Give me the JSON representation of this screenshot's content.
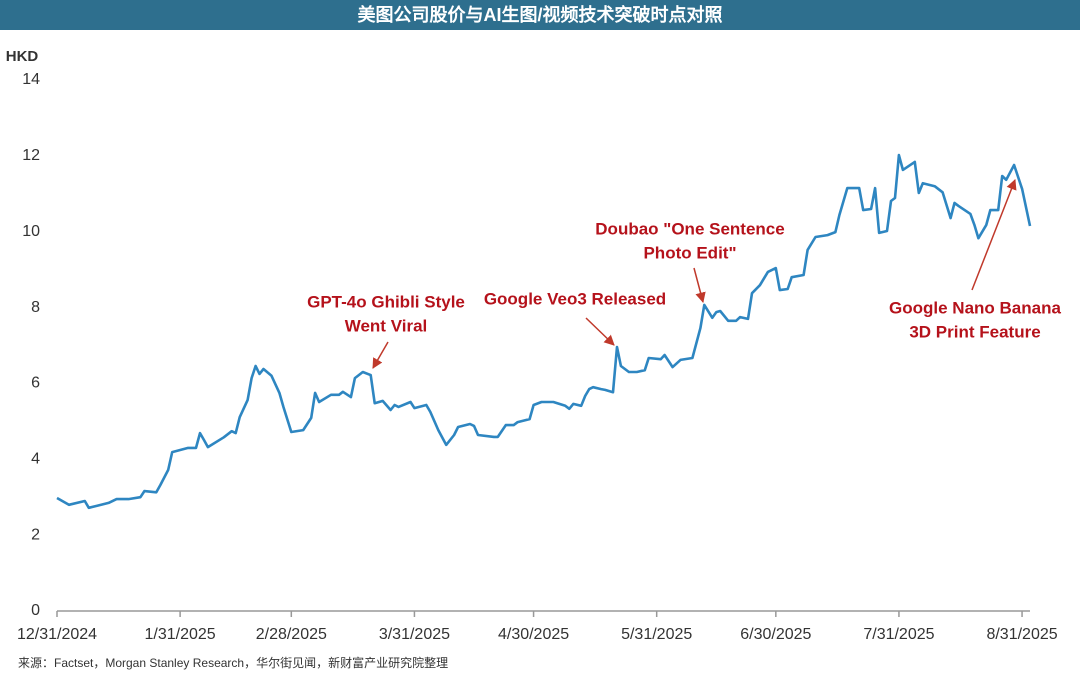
{
  "chart_data": {
    "type": "line",
    "title": "美图公司股价与AI生图/视频技术突破时点对照",
    "y_label": "HKD",
    "source": "来源：Factset，Morgan Stanley Research，华尔街见闻，新财富产业研究院整理",
    "ylim": [
      0,
      14
    ],
    "yticks": [
      0,
      2,
      4,
      6,
      8,
      10,
      12,
      14
    ],
    "xlim": [
      "12/31/2024",
      "9/2/2025"
    ],
    "xticks": [
      "12/31/2024",
      "1/31/2025",
      "2/28/2025",
      "3/31/2025",
      "4/30/2025",
      "5/31/2025",
      "6/30/2025",
      "7/31/2025",
      "8/31/2025"
    ],
    "x": [
      "12/31/2024",
      "1/3/2025",
      "1/7/2025",
      "1/8/2025",
      "1/10/2025",
      "1/13/2025",
      "1/15/2025",
      "1/18/2025",
      "1/21/2025",
      "1/22/2025",
      "1/25/2025",
      "1/26/2025",
      "1/28/2025",
      "1/29/2025",
      "2/2/2025",
      "2/4/2025",
      "2/5/2025",
      "2/6/2025",
      "2/7/2025",
      "2/11/2025",
      "2/13/2025",
      "2/14/2025",
      "2/15/2025",
      "2/17/2025",
      "2/18/2025",
      "2/19/2025",
      "2/20/2025",
      "2/21/2025",
      "2/23/2025",
      "2/25/2025",
      "2/26/2025",
      "2/28/2025",
      "3/3/2025",
      "3/5/2025",
      "3/6/2025",
      "3/7/2025",
      "3/10/2025",
      "3/12/2025",
      "3/13/2025",
      "3/15/2025",
      "3/16/2025",
      "3/18/2025",
      "3/20/2025",
      "3/21/2025",
      "3/23/2025",
      "3/25/2025",
      "3/26/2025",
      "3/27/2025",
      "3/30/2025",
      "3/31/2025",
      "4/3/2025",
      "4/4/2025",
      "4/6/2025",
      "4/8/2025",
      "4/10/2025",
      "4/11/2025",
      "4/14/2025",
      "4/15/2025",
      "4/16/2025",
      "4/20/2025",
      "4/21/2025",
      "4/23/2025",
      "4/25/2025",
      "4/26/2025",
      "4/29/2025",
      "4/30/2025",
      "5/2/2025",
      "5/5/2025",
      "5/8/2025",
      "5/9/2025",
      "5/10/2025",
      "5/12/2025",
      "5/13/2025",
      "5/14/2025",
      "5/15/2025",
      "5/17/2025",
      "5/18/2025",
      "5/20/2025",
      "5/21/2025",
      "5/22/2025",
      "5/24/2025",
      "5/26/2025",
      "5/28/2025",
      "5/29/2025",
      "6/1/2025",
      "6/2/2025",
      "6/4/2025",
      "6/6/2025",
      "6/9/2025",
      "6/11/2025",
      "6/12/2025",
      "6/14/2025",
      "6/15/2025",
      "6/16/2025",
      "6/18/2025",
      "6/20/2025",
      "6/21/2025",
      "6/23/2025",
      "6/24/2025",
      "6/26/2025",
      "6/28/2025",
      "6/30/2025",
      "7/1/2025",
      "7/3/2025",
      "7/4/2025",
      "7/7/2025",
      "7/8/2025",
      "7/10/2025",
      "7/13/2025",
      "7/15/2025",
      "7/16/2025",
      "7/18/2025",
      "7/21/2025",
      "7/22/2025",
      "7/24/2025",
      "7/25/2025",
      "7/26/2025",
      "7/28/2025",
      "7/29/2025",
      "7/30/2025",
      "7/31/2025",
      "8/1/2025",
      "8/4/2025",
      "8/5/2025",
      "8/6/2025",
      "8/9/2025",
      "8/11/2025",
      "8/13/2025",
      "8/14/2025",
      "8/15/2025",
      "8/18/2025",
      "8/19/2025",
      "8/20/2025",
      "8/22/2025",
      "8/23/2025",
      "8/25/2025",
      "8/26/2025",
      "8/27/2025",
      "8/29/2025",
      "8/31/2025",
      "9/2/2025"
    ],
    "series": [
      {
        "name": "美图公司股价",
        "color": "#2e86c1",
        "values": [
          2.98,
          2.8,
          2.9,
          2.72,
          2.77,
          2.85,
          2.95,
          2.95,
          3.0,
          3.16,
          3.13,
          3.32,
          3.72,
          4.19,
          4.3,
          4.3,
          4.69,
          4.51,
          4.32,
          4.58,
          4.74,
          4.69,
          5.11,
          5.56,
          6.14,
          6.46,
          6.25,
          6.38,
          6.2,
          5.75,
          5.38,
          4.72,
          4.77,
          5.09,
          5.75,
          5.51,
          5.7,
          5.7,
          5.78,
          5.64,
          6.14,
          6.3,
          6.22,
          5.48,
          5.54,
          5.3,
          5.43,
          5.38,
          5.51,
          5.35,
          5.43,
          5.25,
          4.77,
          4.38,
          4.64,
          4.85,
          4.93,
          4.88,
          4.64,
          4.59,
          4.59,
          4.9,
          4.9,
          4.98,
          5.06,
          5.43,
          5.51,
          5.51,
          5.41,
          5.33,
          5.46,
          5.41,
          5.67,
          5.85,
          5.9,
          5.85,
          5.83,
          5.77,
          6.96,
          6.46,
          6.3,
          6.3,
          6.35,
          6.67,
          6.64,
          6.75,
          6.43,
          6.62,
          6.67,
          7.46,
          8.07,
          7.73,
          7.88,
          7.91,
          7.65,
          7.65,
          7.75,
          7.7,
          8.38,
          8.59,
          8.94,
          9.04,
          8.46,
          8.49,
          8.8,
          8.86,
          9.52,
          9.86,
          9.91,
          9.99,
          10.44,
          11.15,
          11.15,
          10.57,
          10.6,
          11.15,
          9.97,
          10.02,
          10.81,
          10.89,
          12.02,
          11.63,
          11.84,
          11.02,
          11.28,
          11.2,
          11.04,
          10.36,
          10.76,
          10.68,
          10.47,
          10.18,
          9.83,
          10.18,
          10.57,
          10.57,
          11.47,
          11.37,
          11.76,
          11.13,
          10.15
        ]
      }
    ],
    "annotations": [
      {
        "text": [
          "GPT-4o Ghibli Style",
          "Went Viral"
        ]
      },
      {
        "text": [
          "Google Veo3 Released"
        ]
      },
      {
        "text": [
          "Doubao \"One Sentence",
          "Photo Edit\""
        ]
      },
      {
        "text": [
          "Google Nano Banana",
          "3D Print Feature"
        ]
      }
    ]
  }
}
